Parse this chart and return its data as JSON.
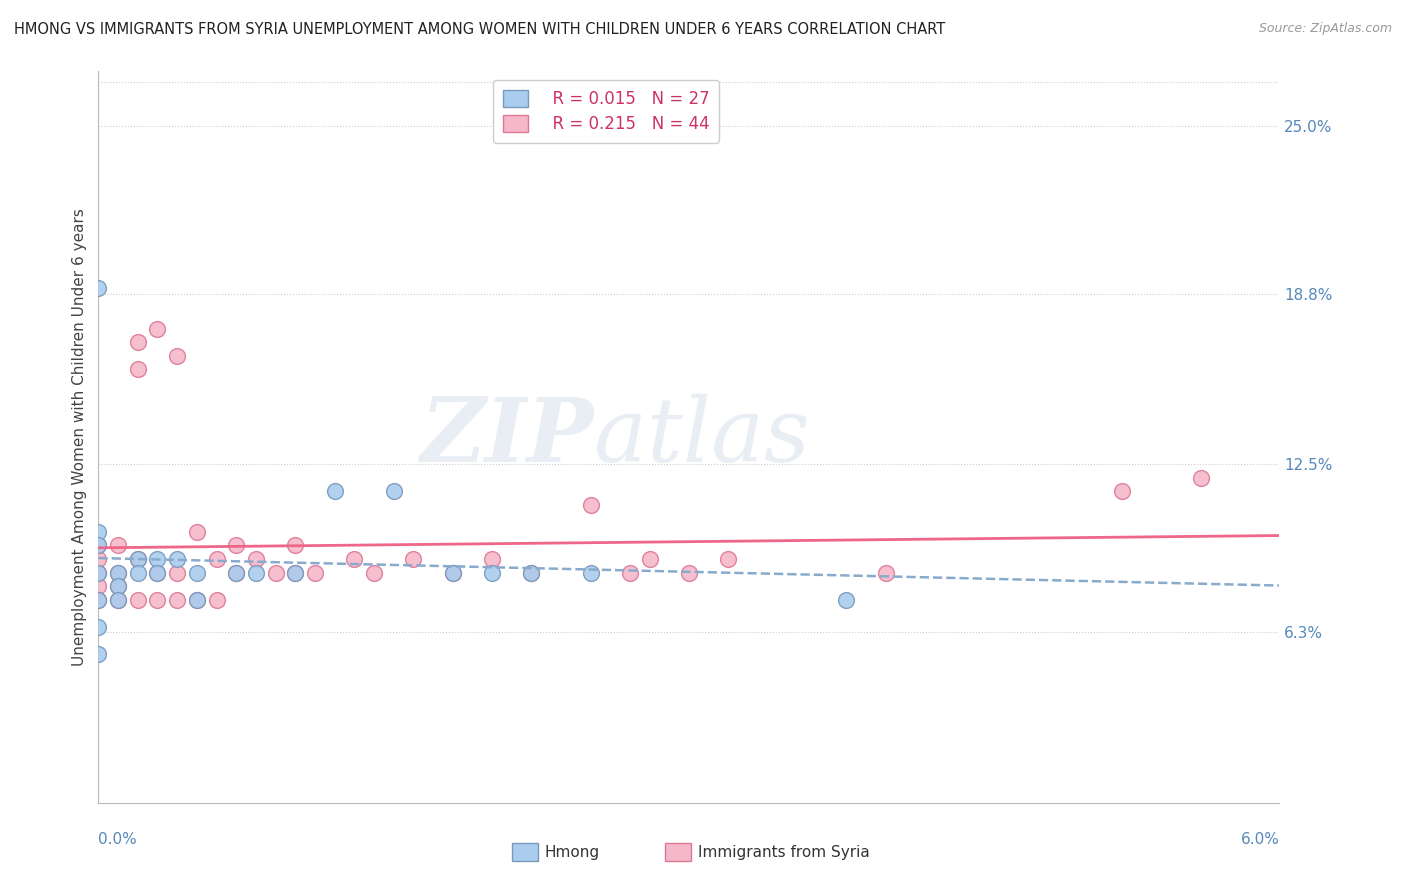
{
  "title": "HMONG VS IMMIGRANTS FROM SYRIA UNEMPLOYMENT AMONG WOMEN WITH CHILDREN UNDER 6 YEARS CORRELATION CHART",
  "source": "Source: ZipAtlas.com",
  "ylabel": "Unemployment Among Women with Children Under 6 years",
  "ylabel_labels": [
    "6.3%",
    "12.5%",
    "18.8%",
    "25.0%"
  ],
  "ylabel_values": [
    0.063,
    0.125,
    0.188,
    0.25
  ],
  "xmin": 0.0,
  "xmax": 0.06,
  "ymin": 0.0,
  "ymax": 0.27,
  "hmong_color": "#aaccee",
  "syria_color": "#f5b8c8",
  "hmong_edge_color": "#7799bb",
  "syria_edge_color": "#dd7799",
  "hmong_line_color": "#88aacc",
  "syria_line_color": "#ee6688",
  "legend_r1": "R = 0.015",
  "legend_n1": "N = 27",
  "legend_r2": "R = 0.215",
  "legend_n2": "N = 44",
  "hmong_x": [
    0.0,
    0.0,
    0.0,
    0.0,
    0.0,
    0.0,
    0.0,
    0.001,
    0.001,
    0.001,
    0.002,
    0.002,
    0.003,
    0.003,
    0.004,
    0.005,
    0.005,
    0.007,
    0.008,
    0.01,
    0.012,
    0.015,
    0.018,
    0.02,
    0.022,
    0.025,
    0.038
  ],
  "hmong_y": [
    0.19,
    0.1,
    0.095,
    0.085,
    0.075,
    0.065,
    0.055,
    0.085,
    0.08,
    0.075,
    0.09,
    0.085,
    0.09,
    0.085,
    0.09,
    0.085,
    0.075,
    0.085,
    0.085,
    0.085,
    0.115,
    0.115,
    0.085,
    0.085,
    0.085,
    0.085,
    0.075
  ],
  "syria_x": [
    0.0,
    0.0,
    0.0,
    0.0,
    0.0,
    0.001,
    0.001,
    0.001,
    0.001,
    0.002,
    0.002,
    0.002,
    0.002,
    0.003,
    0.003,
    0.003,
    0.004,
    0.004,
    0.004,
    0.005,
    0.005,
    0.006,
    0.006,
    0.007,
    0.007,
    0.008,
    0.009,
    0.01,
    0.01,
    0.011,
    0.013,
    0.014,
    0.016,
    0.018,
    0.02,
    0.022,
    0.025,
    0.027,
    0.028,
    0.03,
    0.032,
    0.04,
    0.052,
    0.056
  ],
  "syria_y": [
    0.085,
    0.09,
    0.095,
    0.08,
    0.075,
    0.095,
    0.085,
    0.08,
    0.075,
    0.17,
    0.16,
    0.09,
    0.075,
    0.175,
    0.085,
    0.075,
    0.165,
    0.085,
    0.075,
    0.1,
    0.075,
    0.09,
    0.075,
    0.095,
    0.085,
    0.09,
    0.085,
    0.095,
    0.085,
    0.085,
    0.09,
    0.085,
    0.09,
    0.085,
    0.09,
    0.085,
    0.11,
    0.085,
    0.09,
    0.085,
    0.09,
    0.085,
    0.115,
    0.12
  ]
}
